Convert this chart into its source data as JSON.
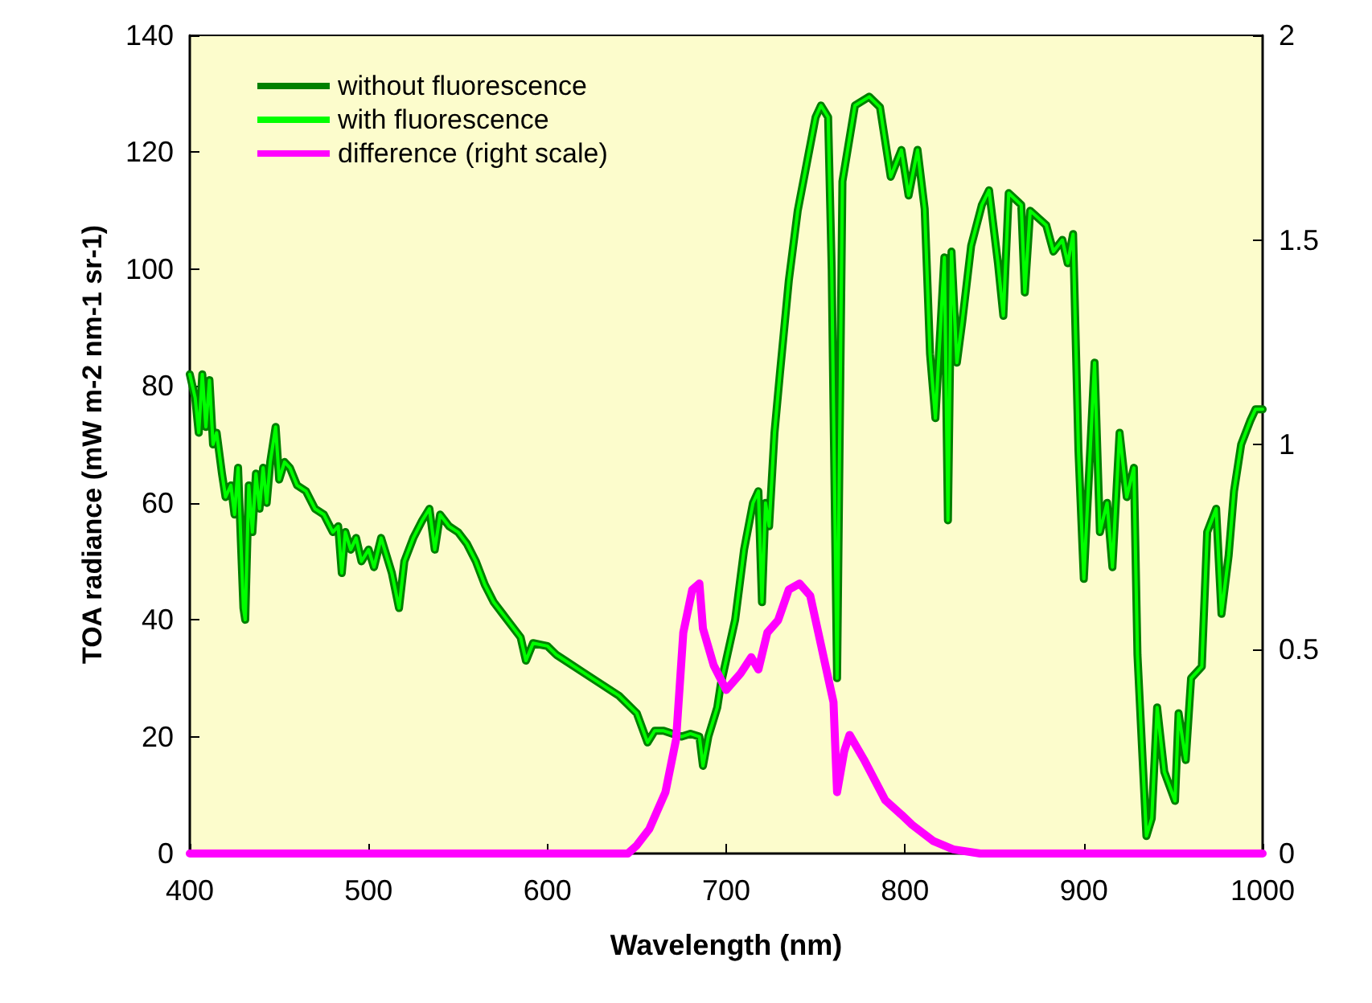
{
  "chart_data": {
    "type": "line",
    "xlabel": "Wavelength (nm)",
    "ylabel": "TOA radiance (mW m-2 nm-1 sr-1)",
    "x": [
      400,
      403,
      405,
      407,
      409,
      411,
      413,
      415,
      418,
      420,
      423,
      425,
      427,
      430,
      431,
      433,
      435,
      437,
      439,
      441,
      443,
      445,
      448,
      450,
      453,
      456,
      460,
      465,
      470,
      475,
      480,
      483,
      485,
      487,
      490,
      493,
      496,
      500,
      503,
      507,
      510,
      513,
      517,
      520,
      525,
      530,
      534,
      537,
      540,
      545,
      550,
      555,
      560,
      565,
      570,
      575,
      580,
      585,
      588,
      592,
      600,
      605,
      610,
      620,
      630,
      640,
      650,
      656,
      660,
      665,
      670,
      675,
      680,
      685,
      687,
      690,
      695,
      697,
      705,
      710,
      715,
      718,
      720,
      722,
      724,
      727,
      730,
      735,
      740,
      745,
      750,
      753,
      757,
      759,
      762,
      765,
      772,
      780,
      786,
      792,
      798,
      802,
      807,
      811,
      814,
      817,
      822,
      824,
      826,
      829,
      832,
      837,
      843,
      847,
      852,
      855,
      858,
      865,
      867,
      870,
      879,
      883,
      888,
      891,
      894,
      897,
      900,
      906,
      909,
      913,
      916,
      920,
      924,
      928,
      930,
      935,
      938,
      941,
      945,
      951,
      953,
      957,
      960,
      966,
      969,
      974,
      977,
      981,
      984,
      988,
      993,
      996,
      1000
    ],
    "series": [
      {
        "name": "without fluorescence",
        "color": "#008000",
        "values": [
          82,
          78,
          72,
          82,
          73,
          81,
          70,
          72,
          65,
          61,
          63,
          58,
          66,
          42,
          40,
          63,
          55,
          65,
          59,
          66,
          60,
          67,
          73,
          64,
          67,
          66,
          63,
          62,
          59,
          58,
          55,
          56,
          48,
          55,
          52,
          54,
          50,
          52,
          49,
          54,
          51,
          48,
          42,
          50,
          54,
          57,
          59,
          52,
          58,
          56,
          55,
          53,
          50,
          46,
          43,
          41,
          39,
          37,
          33,
          36,
          35.5,
          34,
          33,
          31,
          29,
          27,
          24,
          19,
          21,
          21,
          20.5,
          20,
          20.5,
          20,
          15,
          20,
          25,
          29,
          40,
          52,
          60,
          62,
          43,
          60,
          56,
          72,
          82,
          98,
          110,
          118,
          126,
          128,
          126,
          100,
          30,
          115,
          128,
          129.5,
          127.7,
          115.8,
          120.4,
          112.6,
          120.4,
          110.3,
          85.5,
          74.5,
          102,
          57,
          103,
          84,
          91,
          104,
          111,
          113.5,
          101,
          92,
          113,
          111,
          96,
          110,
          107.5,
          103,
          105,
          101,
          106,
          69,
          47,
          84,
          55,
          60,
          49,
          72,
          61,
          66,
          34,
          3,
          6,
          25,
          14,
          9,
          24,
          16,
          30,
          32,
          55,
          59,
          41,
          51,
          62,
          70,
          74,
          76,
          76
        ]
      },
      {
        "name": "with fluorescence",
        "color": "#00ff00",
        "values": [
          82,
          78,
          72,
          82,
          73,
          81,
          70,
          72,
          65,
          61,
          63,
          58,
          66,
          42,
          40,
          63,
          55,
          65,
          59,
          66,
          60,
          67,
          73,
          64,
          67,
          66,
          63,
          62,
          59,
          58,
          55,
          56,
          48,
          55,
          52,
          54,
          50,
          52,
          49,
          54,
          51,
          48,
          42,
          50,
          54,
          57,
          59,
          52,
          58,
          56,
          55,
          53,
          50,
          46,
          43,
          41,
          39,
          37,
          33,
          36,
          35.5,
          34,
          33,
          31,
          29,
          27,
          24,
          19,
          21,
          21,
          20.5,
          20,
          20.5,
          20,
          15,
          20,
          25,
          29,
          40,
          52,
          60,
          62,
          43,
          60,
          56,
          72,
          82,
          98,
          110,
          118,
          126,
          128,
          126,
          100,
          30,
          115,
          128,
          129.5,
          127.7,
          115.8,
          120.4,
          112.6,
          120.4,
          110.3,
          85.5,
          74.5,
          102,
          57,
          103,
          84,
          91,
          104,
          111,
          113.5,
          101,
          92,
          113,
          111,
          96,
          110,
          107.5,
          103,
          105,
          101,
          106,
          69,
          47,
          84,
          55,
          60,
          49,
          72,
          61,
          66,
          34,
          3,
          6,
          25,
          14,
          9,
          24,
          16,
          30,
          32,
          55,
          59,
          41,
          51,
          62,
          70,
          74,
          76,
          76
        ]
      },
      {
        "name": "difference (right scale)",
        "color": "#ff00ff",
        "axis": "y2",
        "x": [
          400,
          645,
          650,
          657,
          666,
          672,
          676,
          681,
          685,
          687,
          693,
          700,
          708,
          714,
          718,
          723,
          729,
          735,
          741,
          747,
          754,
          760,
          762,
          766,
          769,
          777,
          789,
          798,
          804,
          816,
          827,
          842,
          1000
        ],
        "values": [
          0,
          0,
          0.02,
          0.06,
          0.15,
          0.28,
          0.54,
          0.645,
          0.66,
          0.55,
          0.46,
          0.4,
          0.44,
          0.48,
          0.45,
          0.54,
          0.57,
          0.645,
          0.66,
          0.63,
          0.49,
          0.37,
          0.15,
          0.25,
          0.29,
          0.23,
          0.13,
          0.095,
          0.07,
          0.03,
          0.01,
          0,
          0
        ]
      }
    ],
    "xlim": [
      400,
      1000
    ],
    "xticks": [
      400,
      500,
      600,
      700,
      800,
      900,
      1000
    ],
    "ylim": [
      0,
      140
    ],
    "yticks": [
      0,
      20,
      40,
      60,
      80,
      100,
      120,
      140
    ],
    "y2lim": [
      0,
      2
    ],
    "y2ticks": [
      0,
      0.5,
      1,
      1.5,
      2
    ],
    "grid": false,
    "legend": "top left",
    "marker": "none",
    "line_style": "solid"
  }
}
